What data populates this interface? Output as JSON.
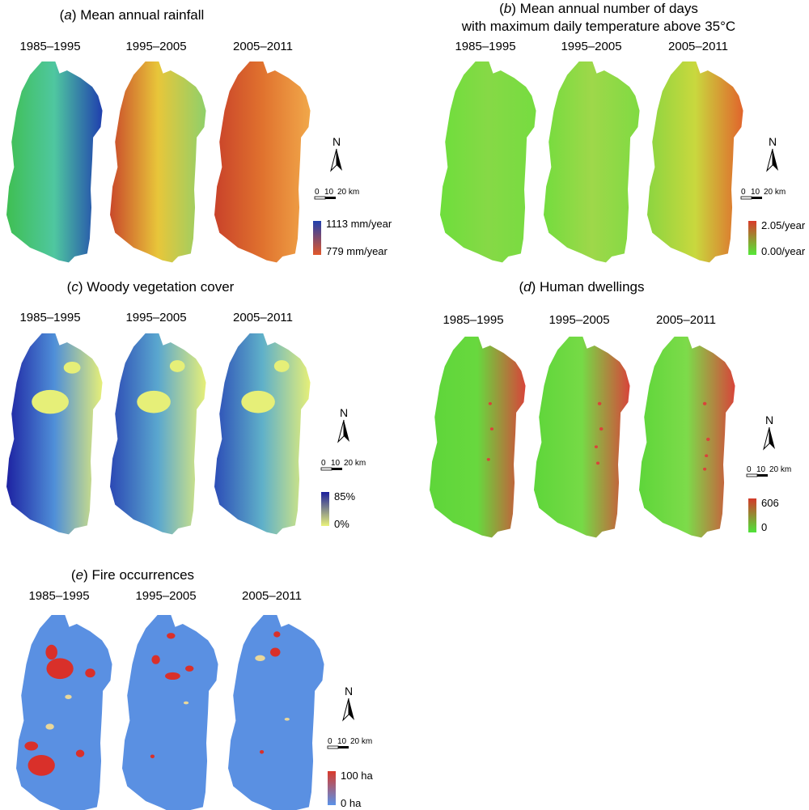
{
  "figure": {
    "panels": [
      {
        "id": "a",
        "label": "a",
        "title_lines": [
          "Mean annual rainfall"
        ],
        "periods": [
          "1985–1995",
          "1995–2005",
          "2005–2011"
        ],
        "legend": {
          "max_label": "1113 mm/year",
          "min_label": "779 mm/year",
          "max_color": "#1f3fae",
          "min_color": "#e2572a"
        },
        "colors": {
          "map1": [
            "#3fbf52",
            "#4fc7a0",
            "#1f3fae"
          ],
          "map2": [
            "#c9482a",
            "#e8c63a",
            "#8fd06a"
          ],
          "map3": [
            "#c9422a",
            "#e0722e",
            "#f1a84a"
          ]
        },
        "north_label": "N",
        "scale_labels": [
          "0",
          "10",
          "20 km"
        ]
      },
      {
        "id": "b",
        "label": "b",
        "title_lines": [
          "Mean annual number of days",
          "with maximum daily temperature above 35°C"
        ],
        "periods": [
          "1985–1995",
          "1995–2005",
          "2005–2011"
        ],
        "legend": {
          "max_label": "2.05/year",
          "min_label": "0.00/year",
          "max_color": "#d93a2a",
          "min_color": "#55e838"
        },
        "colors": {
          "map1": [
            "#6ede3c",
            "#86d946",
            "#76dc40"
          ],
          "map2": [
            "#74dc3e",
            "#9ed84a",
            "#80da42"
          ],
          "map3": [
            "#8bd540",
            "#c9d83e",
            "#e1642c"
          ]
        },
        "north_label": "N",
        "scale_labels": [
          "0",
          "10",
          "20 km"
        ]
      },
      {
        "id": "c",
        "label": "c",
        "title_lines": [
          "Woody vegetation cover"
        ],
        "periods": [
          "1985–1995",
          "1995–2005",
          "2005–2011"
        ],
        "legend": {
          "max_label": "85%",
          "min_label": "0%",
          "max_color": "#1a1e9c",
          "min_color": "#e9f27a"
        },
        "colors": {
          "map1": [
            "#1d22a2",
            "#4f8fd8",
            "#e6ef78"
          ],
          "map2": [
            "#2b48b4",
            "#5aa7cf",
            "#e6ef78"
          ],
          "map3": [
            "#2c4db7",
            "#5fb0c9",
            "#e6ef78"
          ]
        },
        "north_label": "N",
        "scale_labels": [
          "0",
          "10",
          "20 km"
        ]
      },
      {
        "id": "d",
        "label": "d",
        "title_lines": [
          "Human dwellings"
        ],
        "periods": [
          "1985–1995",
          "1995–2005",
          "2005–2011"
        ],
        "legend": {
          "max_label": "606",
          "min_label": "0",
          "max_color": "#d33a2a",
          "min_color": "#4fe33a"
        },
        "colors": {
          "map1": [
            "#5ed63a",
            "#68d83e",
            "#d8443a"
          ],
          "map2": [
            "#5ed63a",
            "#76da46",
            "#d8443a"
          ],
          "map3": [
            "#5ed63a",
            "#7ddb4a",
            "#d8443a"
          ]
        },
        "north_label": "N",
        "scale_labels": [
          "0",
          "10",
          "20 km"
        ]
      },
      {
        "id": "e",
        "label": "e",
        "title_lines": [
          "Fire occurrences"
        ],
        "periods": [
          "1985–1995",
          "1995–2005",
          "2005–2011"
        ],
        "legend": {
          "max_label": "100 ha",
          "min_label": "0 ha",
          "max_color": "#d93a2a",
          "min_color": "#5a92e8"
        },
        "colors": {
          "map1": [
            "#5a90e2",
            "#e9d79a",
            "#d9302a"
          ],
          "map2": [
            "#5a90e2",
            "#e9d79a",
            "#d9302a"
          ],
          "map3": [
            "#5a90e2",
            "#e9d79a",
            "#d9302a"
          ]
        },
        "north_label": "N",
        "scale_labels": [
          "0",
          "10",
          "20 km"
        ]
      }
    ]
  }
}
